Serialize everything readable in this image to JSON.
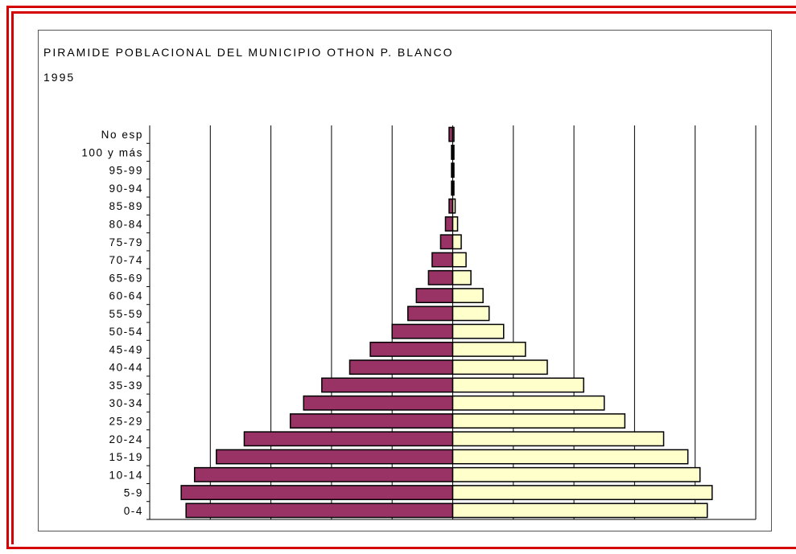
{
  "chart_data": {
    "type": "bar",
    "orientation": "horizontal-pyramid",
    "title": "PIRAMIDE POBLACIONAL DEL MUNICIPIO OTHON P. BLANCO",
    "subtitle": "1995",
    "categories": [
      "0-4",
      "5-9",
      "10-14",
      "15-19",
      "20-24",
      "25-29",
      "30-34",
      "35-39",
      "40-44",
      "45-49",
      "50-54",
      "55-59",
      "60-64",
      "65-69",
      "70-74",
      "75-79",
      "80-84",
      "85-89",
      "90-94",
      "95-99",
      "100 y más",
      "No esp"
    ],
    "series": [
      {
        "values": [
          -22.0,
          -22.4,
          -21.3,
          -19.5,
          -17.2,
          -13.4,
          -12.3,
          -10.8,
          -8.5,
          -6.8,
          -5.0,
          -3.7,
          -3.0,
          -2.0,
          -1.7,
          -1.0,
          -0.6,
          -0.3,
          -0.1,
          -0.1,
          -0.1,
          -0.3
        ],
        "color": "#993366"
      },
      {
        "values": [
          21.0,
          21.4,
          20.4,
          19.4,
          17.4,
          14.2,
          12.5,
          10.8,
          7.8,
          6.0,
          4.2,
          3.0,
          2.5,
          1.5,
          1.1,
          0.7,
          0.4,
          0.2,
          0.0,
          0.0,
          0.0,
          0.1
        ],
        "color": "#ffffcc"
      }
    ],
    "xlim": [
      -25,
      25
    ],
    "gridlines_x": [
      -20,
      -15,
      -10,
      -5,
      0,
      5,
      10,
      15,
      20
    ],
    "grid": true,
    "legend": "none"
  },
  "colors": {
    "frame": "#d40000",
    "border": "#000000"
  }
}
